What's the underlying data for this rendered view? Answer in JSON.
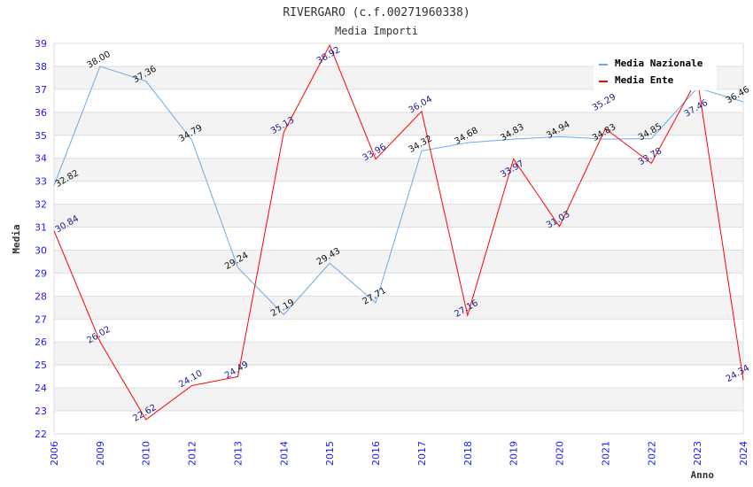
{
  "chart_data": {
    "type": "line",
    "title": "RIVERGARO (c.f.00271960338)",
    "subtitle": "Media Importi",
    "xlabel": "Anno",
    "ylabel": "Media",
    "ylim": [
      22,
      39
    ],
    "yticks": [
      "22",
      "23",
      "24",
      "25",
      "26",
      "27",
      "28",
      "29",
      "30",
      "31",
      "32",
      "33",
      "34",
      "35",
      "36",
      "37",
      "38",
      "39"
    ],
    "categories": [
      "2006",
      "2009",
      "2010",
      "2012",
      "2013",
      "2014",
      "2015",
      "2016",
      "2017",
      "2018",
      "2019",
      "2020",
      "2021",
      "2022",
      "2023",
      "2024"
    ],
    "grid": true,
    "legend_position": "top-right",
    "series": [
      {
        "name": "Media Nazionale",
        "color": "#66aaee",
        "label_color": "#111111",
        "values": [
          32.82,
          38.0,
          37.36,
          34.79,
          29.24,
          27.19,
          29.43,
          27.71,
          34.32,
          34.68,
          34.83,
          34.94,
          34.83,
          34.85,
          37.06,
          36.46
        ],
        "labels": [
          "32.82",
          "38.00",
          "37.36",
          "34.79",
          "29.24",
          "27.19",
          "29.43",
          "27.71",
          "34.32",
          "34.68",
          "34.83",
          "34.94",
          "34.83",
          "34.85",
          "",
          "36.46"
        ]
      },
      {
        "name": "Media Ente",
        "color": "#ff0000",
        "label_color": "#1a1a8c",
        "values": [
          30.84,
          26.02,
          22.62,
          24.1,
          24.49,
          35.13,
          38.92,
          33.96,
          36.04,
          27.16,
          33.97,
          31.03,
          35.29,
          33.78,
          37.46,
          24.34
        ],
        "labels": [
          "30.84",
          "26.02",
          "22.62",
          "24.10",
          "24.49",
          "35.13",
          "38.92",
          "33.96",
          "36.04",
          "27.16",
          "33.97",
          "31.03",
          "35.29",
          "33.78",
          "37.46",
          "24.34"
        ]
      }
    ]
  }
}
